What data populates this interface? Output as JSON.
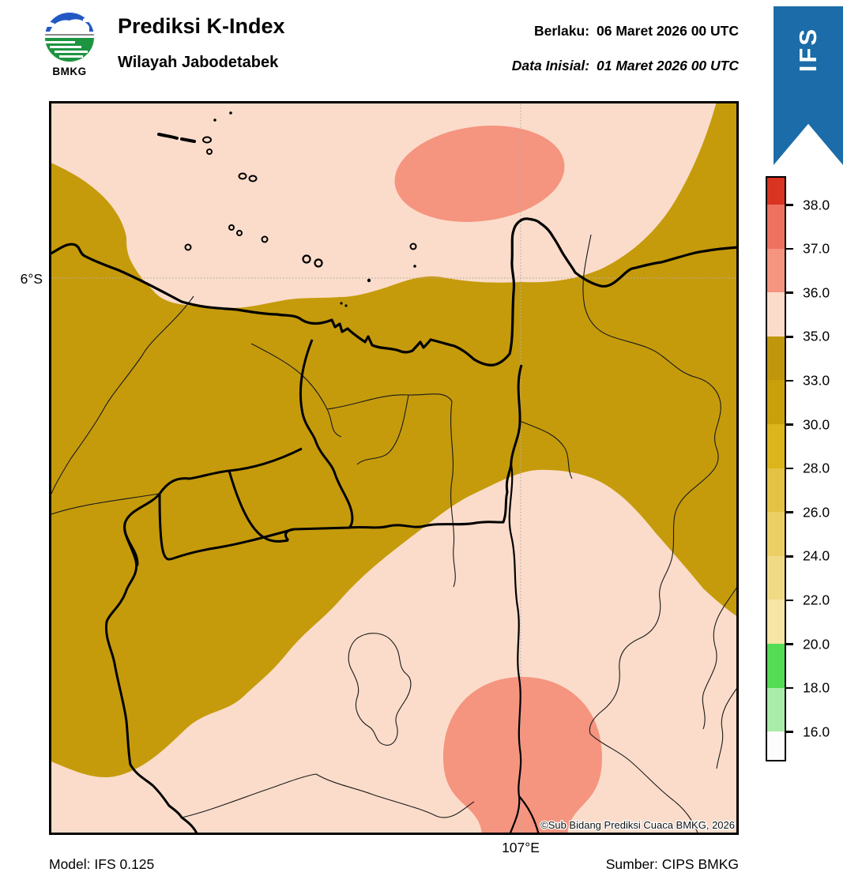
{
  "header": {
    "logo_text": "BMKG",
    "title": "Prediksi K-Index",
    "subtitle": "Wilayah Jabodetabek",
    "valid_label": "Berlaku:",
    "valid_value": "06 Maret 2026 00 UTC",
    "init_label": "Data Inisial:",
    "init_value": "01 Maret 2026 00 UTC"
  },
  "ribbon": {
    "label": "IFS",
    "color": "#1b6ca8"
  },
  "colorbar": {
    "segments": [
      {
        "color": "#d93321",
        "tick_top": null
      },
      {
        "color": "#ee7160",
        "tick_top": "38.0"
      },
      {
        "color": "#f5947f",
        "tick_top": "37.0"
      },
      {
        "color": "#fbdcca",
        "tick_top": "36.0"
      },
      {
        "color": "#bf960c",
        "tick_top": "35.0"
      },
      {
        "color": "#c9a00a",
        "tick_top": "33.0"
      },
      {
        "color": "#dcb41c",
        "tick_top": "30.0"
      },
      {
        "color": "#e4c243",
        "tick_top": "28.0"
      },
      {
        "color": "#ebcf64",
        "tick_top": "26.0"
      },
      {
        "color": "#f1da85",
        "tick_top": "24.0"
      },
      {
        "color": "#f6e5a4",
        "tick_top": "22.0"
      },
      {
        "color": "#55dc55",
        "tick_top": "20.0"
      },
      {
        "color": "#a9eba9",
        "tick_top": "18.0"
      },
      {
        "color": "#fdfdfd",
        "tick_top": "16.0"
      }
    ]
  },
  "map": {
    "lat_label": "6°S",
    "lon_label": "107°E",
    "copyright": "©Sub Bidang Prediksi Cuaca BMKG, 2026",
    "colors": {
      "band_33_35": "#c59b0c",
      "band_35_36": "#fbdcca",
      "band_36_37": "#f5947f",
      "coast": "#000000",
      "gridline": "#b6aea6"
    }
  },
  "footer": {
    "model": "Model: IFS 0.125",
    "source": "Sumber: CIPS BMKG"
  }
}
